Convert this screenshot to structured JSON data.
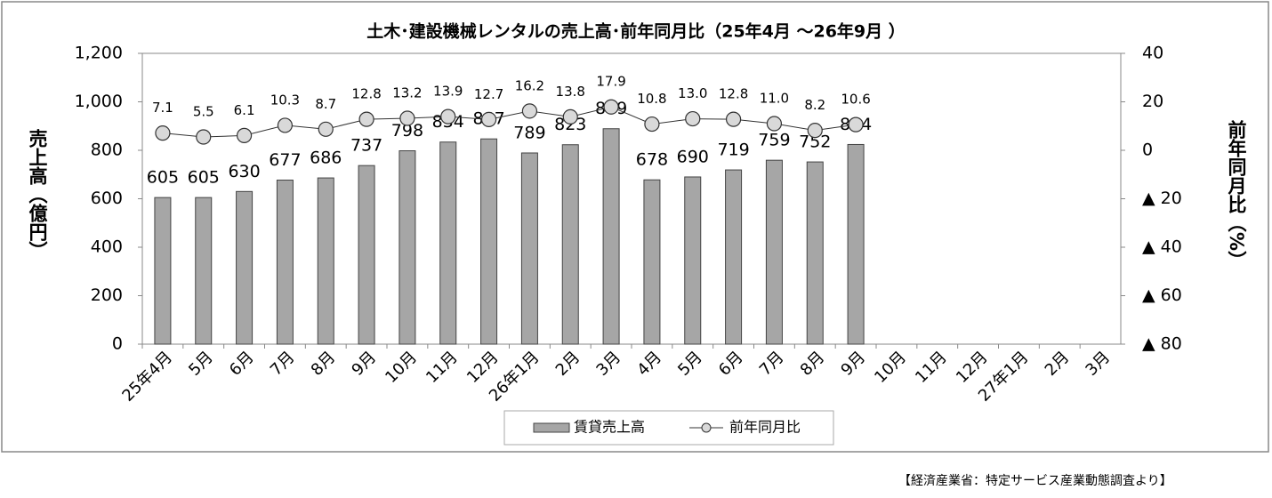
{
  "chart_data": {
    "type": "bar-line",
    "title": "土木･建設機械レンタルの売上高･前年同月比（25年4月 ～26年9月 ）",
    "y_label": "売上高（億円）",
    "y2_label": "前年同月比（%）",
    "categories": [
      "25年4月",
      "5月",
      "6月",
      "7月",
      "8月",
      "9月",
      "10月",
      "11月",
      "12月",
      "26年1月",
      "2月",
      "3月",
      "4月",
      "5月",
      "6月",
      "7月",
      "8月",
      "9月",
      "10月",
      "11月",
      "12月",
      "27年1月",
      "2月",
      "3月"
    ],
    "series": [
      {
        "name": "賃貸売上高",
        "type": "bar",
        "color": "#a6a6a6",
        "values": [
          605,
          605,
          630,
          677,
          686,
          737,
          798,
          834,
          847,
          789,
          823,
          889,
          678,
          690,
          719,
          759,
          752,
          824,
          null,
          null,
          null,
          null,
          null,
          null
        ]
      },
      {
        "name": "前年同月比",
        "type": "line",
        "axis": "y2",
        "color": "#d9d9d9",
        "values": [
          7.1,
          5.5,
          6.1,
          10.3,
          8.7,
          12.8,
          13.2,
          13.9,
          12.7,
          16.2,
          13.8,
          17.9,
          10.8,
          13.0,
          12.8,
          11.0,
          8.2,
          10.6,
          null,
          null,
          null,
          null,
          null,
          null
        ],
        "value_labels": [
          "7.1",
          "5.5",
          "6.1",
          "10.3",
          "8.7",
          "12.8",
          "13.2",
          "13.9",
          "12.7",
          "16.2",
          "13.8",
          "17.9",
          "10.8",
          "13.0",
          "12.8",
          "11.0",
          "8.2",
          "10.6",
          null,
          null,
          null,
          null,
          null,
          null
        ]
      }
    ],
    "ylim": [
      0,
      1200
    ],
    "yticks": [
      0,
      200,
      400,
      600,
      800,
      {
        "value": 1000,
        "label": "1,000"
      },
      {
        "value": 1200,
        "label": "1,200"
      }
    ],
    "y2lim": [
      -80,
      40
    ],
    "y2ticks": [
      {
        "value": -80,
        "label": "▲ 80"
      },
      {
        "value": -60,
        "label": "▲ 60"
      },
      {
        "value": -40,
        "label": "▲ 40"
      },
      {
        "value": -20,
        "label": "▲ 20"
      },
      0,
      20,
      40
    ],
    "grid": false,
    "legend": "bottom"
  },
  "note": "【経済産業省：特定サービス産業動態調査より】"
}
